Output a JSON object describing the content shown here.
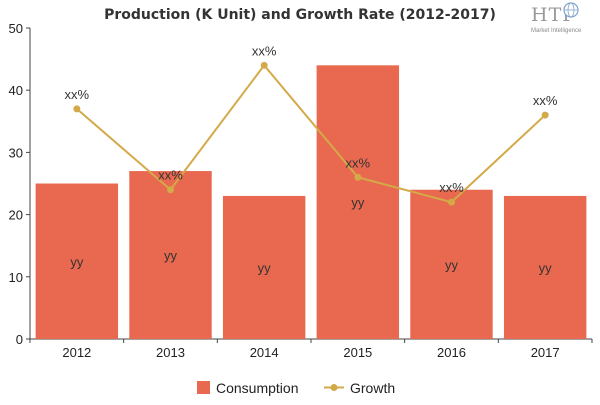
{
  "chart_data": {
    "type": "bar",
    "title": "Production (K Unit) and Growth Rate (2012-2017)",
    "categories": [
      "2012",
      "2013",
      "2014",
      "2015",
      "2016",
      "2017"
    ],
    "ylim": [
      0,
      50
    ],
    "yticks": [
      0,
      10,
      20,
      30,
      40,
      50
    ],
    "series": [
      {
        "name": "Consumption",
        "type": "bar",
        "color": "#e8694f",
        "values": [
          25,
          27,
          23,
          44,
          24,
          23
        ],
        "data_labels": [
          "yy",
          "yy",
          "yy",
          "yy",
          "yy",
          "yy"
        ]
      },
      {
        "name": "Growth",
        "type": "line",
        "color": "#d4a948",
        "values": [
          37,
          24,
          44,
          26,
          22,
          36
        ],
        "data_labels": [
          "xx%",
          "xx%",
          "xx%",
          "xx%",
          "xx%",
          "xx%"
        ]
      }
    ],
    "grid": false,
    "legend_position": "bottom-center"
  },
  "logo": {
    "text": "HTF",
    "subtext": "Market Intelligence",
    "icon": "globe-icon"
  },
  "colors": {
    "axis": "#444444",
    "background": "#ffffff"
  }
}
